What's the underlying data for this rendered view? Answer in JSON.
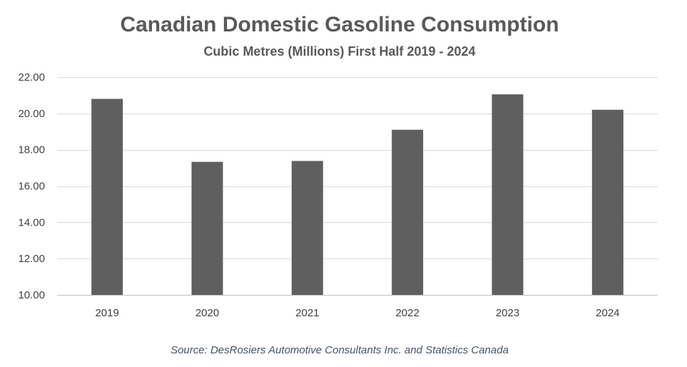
{
  "chart_data": {
    "type": "bar",
    "title": "Canadian Domestic Gasoline Consumption",
    "subtitle": "Cubic Metres (Millions) First Half 2019 - 2024",
    "xlabel": "",
    "ylabel": "",
    "categories": [
      "2019",
      "2020",
      "2021",
      "2022",
      "2023",
      "2024"
    ],
    "values": [
      20.8,
      17.33,
      17.38,
      19.1,
      21.05,
      20.2
    ],
    "ylim": [
      10,
      22
    ],
    "yticks": [
      "10.00",
      "12.00",
      "14.00",
      "16.00",
      "18.00",
      "20.00",
      "22.00"
    ],
    "grid": true,
    "legend": "none",
    "bar_color": "#5f5f5f",
    "source": "Source: DesRosiers Automotive Consultants Inc. and Statistics Canada"
  }
}
